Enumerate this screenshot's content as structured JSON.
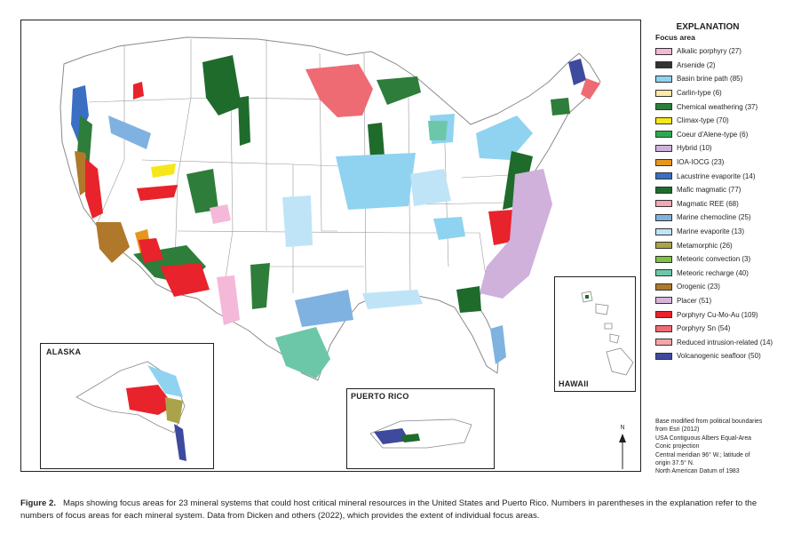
{
  "legend": {
    "title": "EXPLANATION",
    "subtitle": "Focus area",
    "items": [
      {
        "label": "Alkalic porphyry (27)",
        "color": "#f4b8d8"
      },
      {
        "label": "Arsenide (2)",
        "color": "#333333"
      },
      {
        "label": "Basin brine path (85)",
        "color": "#8fd3f0"
      },
      {
        "label": "Carlin-type (6)",
        "color": "#fde9a8"
      },
      {
        "label": "Chemical weathering (37)",
        "color": "#2e7d3a"
      },
      {
        "label": "Climax-type (70)",
        "color": "#f5e71a"
      },
      {
        "label": "Coeur d'Alene-type (6)",
        "color": "#2fa84f"
      },
      {
        "label": "Hybrid (10)",
        "color": "#cfb1dc"
      },
      {
        "label": "IOA-IOCG (23)",
        "color": "#e6961e"
      },
      {
        "label": "Lacustrine evaporite (14)",
        "color": "#3a6fc4"
      },
      {
        "label": "Mafic magmatic (77)",
        "color": "#1f6b2c"
      },
      {
        "label": "Magmatic REE (68)",
        "color": "#f2a7b3"
      },
      {
        "label": "Marine chemocline (25)",
        "color": "#7fb2e0"
      },
      {
        "label": "Marine evaporite (13)",
        "color": "#bfe4f7"
      },
      {
        "label": "Metamorphic (26)",
        "color": "#aaa34a"
      },
      {
        "label": "Meteoric convection (3)",
        "color": "#7dc242"
      },
      {
        "label": "Meteoric recharge (40)",
        "color": "#6cc7a8"
      },
      {
        "label": "Orogenic (23)",
        "color": "#b0782a"
      },
      {
        "label": "Placer (51)",
        "color": "#d6b5dd"
      },
      {
        "label": "Porphyry Cu-Mo-Au (109)",
        "color": "#e8232b"
      },
      {
        "label": "Porphyry Sn (54)",
        "color": "#ee6b74"
      },
      {
        "label": "Reduced intrusion-related (14)",
        "color": "#f4a6a6"
      },
      {
        "label": "Volcanogenic seafloor (50)",
        "color": "#3d4a9e"
      }
    ]
  },
  "insets": {
    "alaska": "ALASKA",
    "puerto_rico": "PUERTO RICO",
    "hawaii": "HAWAII"
  },
  "north_arrow": "N",
  "basemap_notes": [
    "Base modified from political boundaries",
    "from Esri (2012)",
    "USA Contiguous Albers Equal-Area",
    "Conic projection",
    "Central meridian 96° W.; latitude of",
    "origin 37.5° N.",
    "North American Datum of 1983"
  ],
  "caption": {
    "label": "Figure 2.",
    "text": "Maps showing focus areas for 23 mineral systems that could host critical mineral resources in the United States and Puerto Rico. Numbers in parentheses in the explanation refer to the numbers of focus areas for each mineral system. Data from Dicken and others (2022), which provides the extent of individual focus areas."
  }
}
